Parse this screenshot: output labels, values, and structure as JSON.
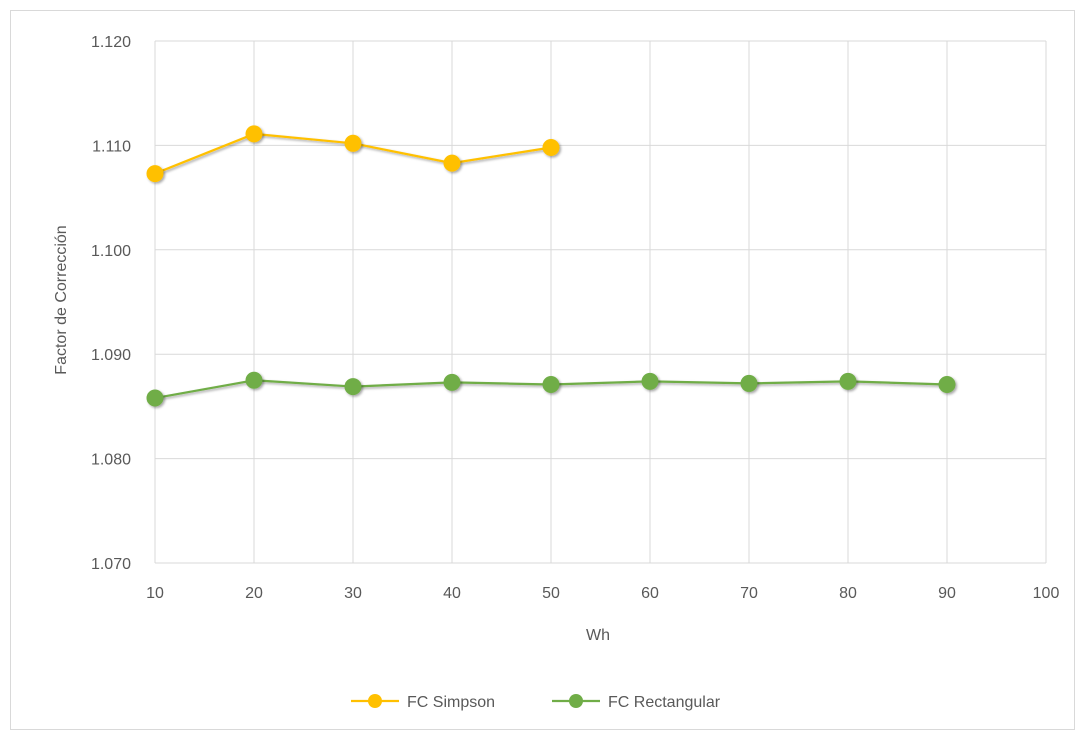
{
  "chart_data": {
    "type": "line",
    "title": "",
    "xlabel": "Wh",
    "ylabel": "Factor de Corrección",
    "xlim": [
      10,
      100
    ],
    "ylim": [
      1.07,
      1.12
    ],
    "x_ticks": [
      "10",
      "20",
      "30",
      "40",
      "50",
      "60",
      "70",
      "80",
      "90",
      "100"
    ],
    "y_ticks": [
      "1.070",
      "1.080",
      "1.090",
      "1.100",
      "1.110",
      "1.120"
    ],
    "grid": true,
    "legend_position": "bottom",
    "series": [
      {
        "name": "FC Simpson",
        "color": "#FFC000",
        "x": [
          10,
          20,
          30,
          40,
          50
        ],
        "y": [
          1.1073,
          1.1111,
          1.1102,
          1.1083,
          1.1098
        ]
      },
      {
        "name": "FC Rectangular",
        "color": "#70AD47",
        "x": [
          10,
          20,
          30,
          40,
          50,
          60,
          70,
          80,
          90
        ],
        "y": [
          1.0858,
          1.0875,
          1.0869,
          1.0873,
          1.0871,
          1.0874,
          1.0872,
          1.0874,
          1.0871
        ]
      }
    ]
  }
}
